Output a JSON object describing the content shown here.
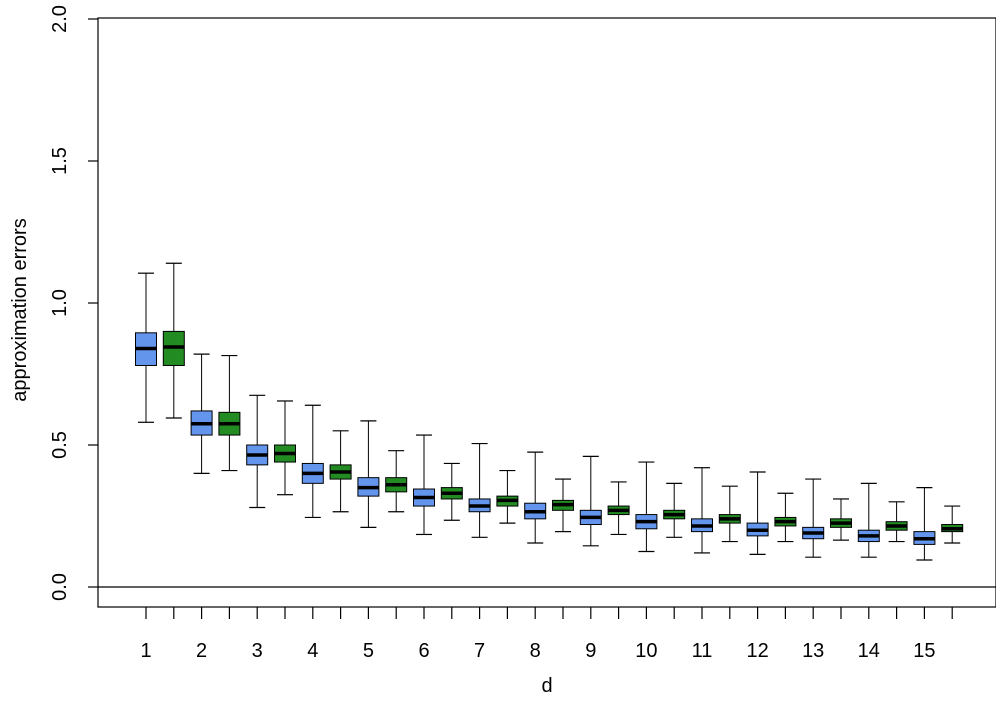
{
  "chart_data": {
    "type": "boxplot",
    "xlabel": "d",
    "ylabel": "approximation errors",
    "ylim": [
      0.0,
      2.0
    ],
    "yticks": [
      0.0,
      0.5,
      1.0,
      1.5,
      2.0
    ],
    "ytick_labels": [
      "0.0",
      "0.5",
      "1.0",
      "1.5",
      "2.0"
    ],
    "reference_line_y": 0.0,
    "categories": [
      "1",
      "2",
      "3",
      "4",
      "5",
      "6",
      "7",
      "8",
      "9",
      "10",
      "11",
      "12",
      "13",
      "14",
      "15"
    ],
    "grid": false,
    "legend": "none",
    "series": [
      {
        "color": "#6495ED",
        "boxes": [
          {
            "whisker_low": 0.58,
            "q1": 0.78,
            "median": 0.84,
            "q3": 0.895,
            "whisker_high": 1.105
          },
          {
            "whisker_low": 0.4,
            "q1": 0.535,
            "median": 0.575,
            "q3": 0.62,
            "whisker_high": 0.82
          },
          {
            "whisker_low": 0.28,
            "q1": 0.43,
            "median": 0.465,
            "q3": 0.5,
            "whisker_high": 0.675
          },
          {
            "whisker_low": 0.245,
            "q1": 0.365,
            "median": 0.4,
            "q3": 0.435,
            "whisker_high": 0.64
          },
          {
            "whisker_low": 0.21,
            "q1": 0.32,
            "median": 0.35,
            "q3": 0.385,
            "whisker_high": 0.585
          },
          {
            "whisker_low": 0.185,
            "q1": 0.285,
            "median": 0.315,
            "q3": 0.345,
            "whisker_high": 0.535
          },
          {
            "whisker_low": 0.175,
            "q1": 0.265,
            "median": 0.285,
            "q3": 0.31,
            "whisker_high": 0.505
          },
          {
            "whisker_low": 0.155,
            "q1": 0.24,
            "median": 0.265,
            "q3": 0.295,
            "whisker_high": 0.475
          },
          {
            "whisker_low": 0.145,
            "q1": 0.22,
            "median": 0.245,
            "q3": 0.27,
            "whisker_high": 0.46
          },
          {
            "whisker_low": 0.125,
            "q1": 0.205,
            "median": 0.23,
            "q3": 0.255,
            "whisker_high": 0.44
          },
          {
            "whisker_low": 0.12,
            "q1": 0.195,
            "median": 0.215,
            "q3": 0.24,
            "whisker_high": 0.42
          },
          {
            "whisker_low": 0.115,
            "q1": 0.18,
            "median": 0.2,
            "q3": 0.225,
            "whisker_high": 0.405
          },
          {
            "whisker_low": 0.105,
            "q1": 0.17,
            "median": 0.19,
            "q3": 0.21,
            "whisker_high": 0.38
          },
          {
            "whisker_low": 0.105,
            "q1": 0.16,
            "median": 0.18,
            "q3": 0.2,
            "whisker_high": 0.365
          },
          {
            "whisker_low": 0.095,
            "q1": 0.15,
            "median": 0.17,
            "q3": 0.195,
            "whisker_high": 0.35
          }
        ]
      },
      {
        "color": "#228B22",
        "boxes": [
          {
            "whisker_low": 0.595,
            "q1": 0.78,
            "median": 0.845,
            "q3": 0.9,
            "whisker_high": 1.14
          },
          {
            "whisker_low": 0.41,
            "q1": 0.535,
            "median": 0.575,
            "q3": 0.615,
            "whisker_high": 0.815
          },
          {
            "whisker_low": 0.325,
            "q1": 0.44,
            "median": 0.47,
            "q3": 0.5,
            "whisker_high": 0.655
          },
          {
            "whisker_low": 0.265,
            "q1": 0.38,
            "median": 0.405,
            "q3": 0.43,
            "whisker_high": 0.55
          },
          {
            "whisker_low": 0.265,
            "q1": 0.335,
            "median": 0.36,
            "q3": 0.385,
            "whisker_high": 0.48
          },
          {
            "whisker_low": 0.235,
            "q1": 0.31,
            "median": 0.33,
            "q3": 0.35,
            "whisker_high": 0.435
          },
          {
            "whisker_low": 0.225,
            "q1": 0.285,
            "median": 0.305,
            "q3": 0.32,
            "whisker_high": 0.41
          },
          {
            "whisker_low": 0.195,
            "q1": 0.27,
            "median": 0.29,
            "q3": 0.305,
            "whisker_high": 0.38
          },
          {
            "whisker_low": 0.185,
            "q1": 0.255,
            "median": 0.27,
            "q3": 0.285,
            "whisker_high": 0.37
          },
          {
            "whisker_low": 0.175,
            "q1": 0.24,
            "median": 0.255,
            "q3": 0.27,
            "whisker_high": 0.365
          },
          {
            "whisker_low": 0.16,
            "q1": 0.225,
            "median": 0.24,
            "q3": 0.255,
            "whisker_high": 0.355
          },
          {
            "whisker_low": 0.16,
            "q1": 0.215,
            "median": 0.23,
            "q3": 0.245,
            "whisker_high": 0.33
          },
          {
            "whisker_low": 0.165,
            "q1": 0.21,
            "median": 0.225,
            "q3": 0.24,
            "whisker_high": 0.31
          },
          {
            "whisker_low": 0.16,
            "q1": 0.2,
            "median": 0.215,
            "q3": 0.23,
            "whisker_high": 0.3
          },
          {
            "whisker_low": 0.155,
            "q1": 0.195,
            "median": 0.205,
            "q3": 0.22,
            "whisker_high": 0.285
          }
        ]
      }
    ]
  }
}
